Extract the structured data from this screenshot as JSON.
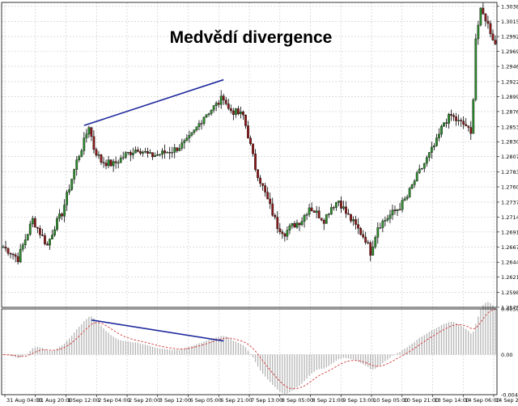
{
  "chart_data": [
    {
      "type": "candlestick",
      "title": "Medvědí divergence",
      "price_axis_labels": [
        "1.30385",
        "1.30155",
        "1.29920",
        "1.29690",
        "1.29460",
        "1.29225",
        "1.28995",
        "1.28765",
        "1.28530",
        "1.28300",
        "1.28070",
        "1.27835",
        "1.27605",
        "1.27370",
        "1.27140",
        "1.26910",
        "1.26675",
        "1.26445",
        "1.26215",
        "1.25980",
        "1.25750"
      ],
      "ylim": [
        1.2575,
        1.30445
      ],
      "time_axis_labels": [
        "31 Aug 04:00",
        "31 Aug 20:00",
        "1 Sep 12:00",
        "2 Sep 04:00",
        "2 Sep 20:00",
        "3 Sep 12:00",
        "6 Sep 05:00",
        "6 Sep 21:00",
        "7 Sep 13:00",
        "8 Sep 05:00",
        "8 Sep 21:00",
        "9 Sep 13:00",
        "10 Sep 05:00",
        "10 Sep 21:00",
        "13 Sep 14:00",
        "14 Sep 06:00",
        "14 Sep 22:00"
      ],
      "close_path_points": [
        [
          0,
          1.2668
        ],
        [
          3,
          1.266
        ],
        [
          6,
          1.265
        ],
        [
          9,
          1.268
        ],
        [
          12,
          1.271
        ],
        [
          15,
          1.269
        ],
        [
          18,
          1.267
        ],
        [
          21,
          1.27
        ],
        [
          24,
          1.272
        ],
        [
          27,
          1.276
        ],
        [
          30,
          1.28
        ],
        [
          33,
          1.283
        ],
        [
          35,
          1.2855
        ],
        [
          37,
          1.282
        ],
        [
          40,
          1.28
        ],
        [
          45,
          1.2795
        ],
        [
          50,
          1.281
        ],
        [
          55,
          1.282
        ],
        [
          60,
          1.2808
        ],
        [
          65,
          1.2812
        ],
        [
          70,
          1.2818
        ],
        [
          75,
          1.283
        ],
        [
          78,
          1.2845
        ],
        [
          82,
          1.287
        ],
        [
          85,
          1.288
        ],
        [
          88,
          1.289
        ],
        [
          90,
          1.29
        ],
        [
          92,
          1.288
        ],
        [
          95,
          1.2875
        ],
        [
          98,
          1.287
        ],
        [
          100,
          1.284
        ],
        [
          103,
          1.279
        ],
        [
          106,
          1.276
        ],
        [
          109,
          1.273
        ],
        [
          112,
          1.27
        ],
        [
          115,
          1.269
        ],
        [
          118,
          1.27
        ],
        [
          122,
          1.271
        ],
        [
          125,
          1.273
        ],
        [
          128,
          1.272
        ],
        [
          131,
          1.271
        ],
        [
          134,
          1.273
        ],
        [
          137,
          1.274
        ],
        [
          140,
          1.272
        ],
        [
          144,
          1.27
        ],
        [
          148,
          1.268
        ],
        [
          150,
          1.266
        ],
        [
          153,
          1.27
        ],
        [
          156,
          1.271
        ],
        [
          159,
          1.272
        ],
        [
          162,
          1.273
        ],
        [
          165,
          1.2745
        ],
        [
          168,
          1.277
        ],
        [
          171,
          1.279
        ],
        [
          174,
          1.281
        ],
        [
          177,
          1.283
        ],
        [
          180,
          1.286
        ],
        [
          183,
          1.287
        ],
        [
          186,
          1.286
        ],
        [
          189,
          1.2855
        ],
        [
          191,
          1.284
        ],
        [
          192,
          1.29
        ],
        [
          193,
          1.299
        ],
        [
          195,
          1.303
        ],
        [
          197,
          1.302
        ],
        [
          199,
          1.3
        ],
        [
          201,
          1.298
        ]
      ],
      "resistance_line": [
        [
          33,
          1.2855
        ],
        [
          90,
          1.29255
        ]
      ]
    },
    {
      "type": "histogram",
      "indicator_axis_labels": [
        "0.00502",
        "0.00",
        "-0.00441"
      ],
      "ylim": [
        -0.00441,
        0.00502
      ],
      "divergence_line": [
        [
          36,
          0.0038
        ],
        [
          90,
          0.0015
        ]
      ]
    }
  ]
}
